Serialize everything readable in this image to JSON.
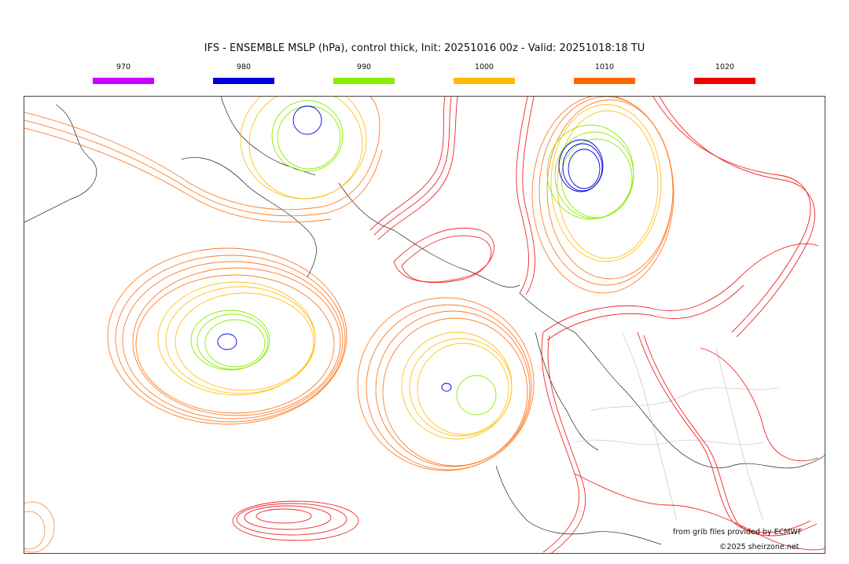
{
  "title": "IFS - ENSEMBLE MSLP (hPa), control thick, Init: 20251016 00z - Valid: 20251018:18 TU",
  "legend": [
    {
      "label": "970",
      "color": "#cc00ff"
    },
    {
      "label": "980",
      "color": "#0000dd"
    },
    {
      "label": "990",
      "color": "#88ee00"
    },
    {
      "label": "1000",
      "color": "#ffbb00"
    },
    {
      "label": "1010",
      "color": "#ff6600"
    },
    {
      "label": "1020",
      "color": "#ee0000"
    }
  ],
  "credits": {
    "source": "from grib files provided by ECMWF",
    "copyright": "©2025 sheirzone.net"
  }
}
